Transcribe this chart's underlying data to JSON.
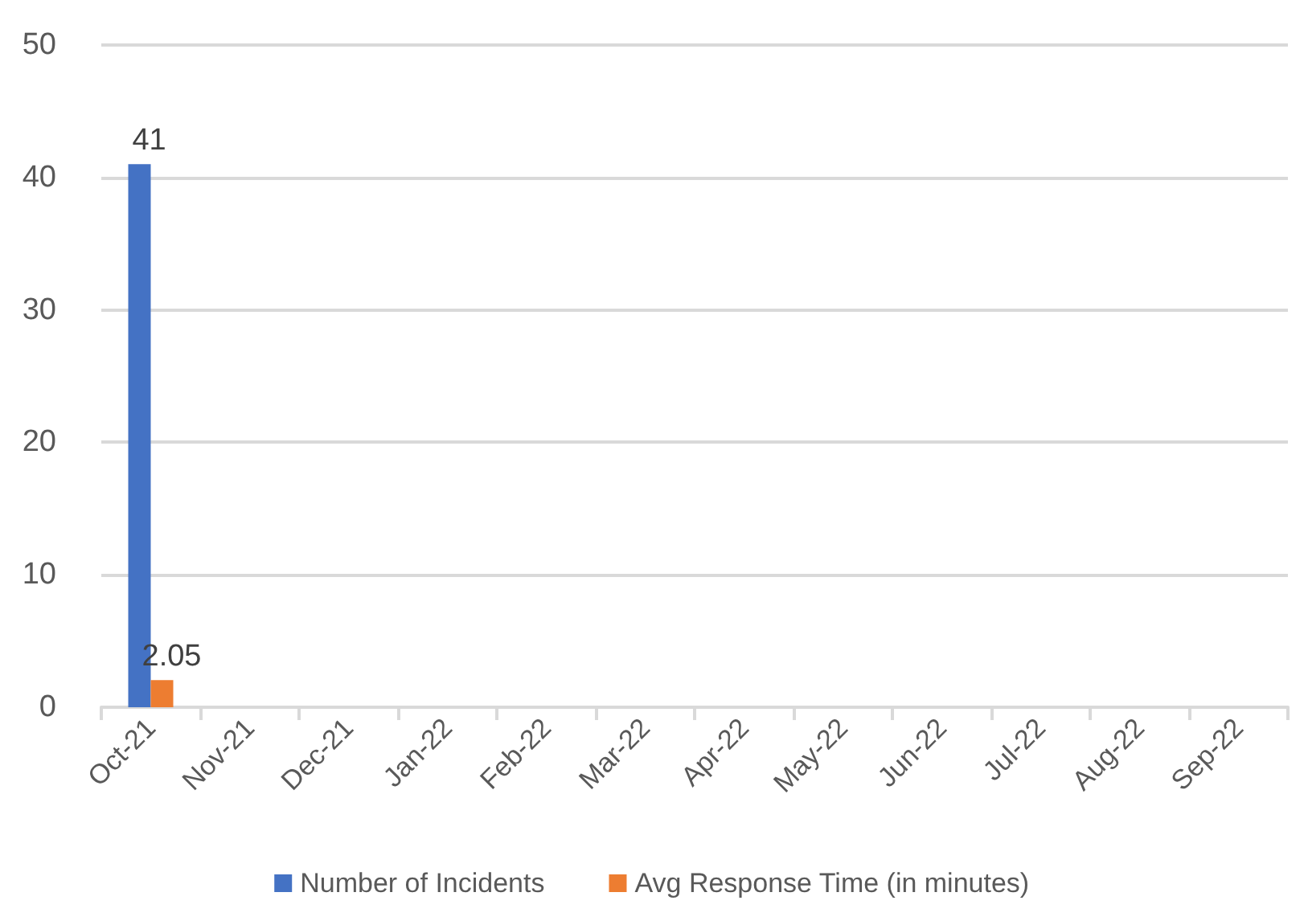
{
  "chart_data": {
    "type": "bar",
    "categories": [
      "Oct-21",
      "Nov-21",
      "Dec-21",
      "Jan-22",
      "Feb-22",
      "Mar-22",
      "Apr-22",
      "May-22",
      "Jun-22",
      "Jul-22",
      "Aug-22",
      "Sep-22"
    ],
    "series": [
      {
        "name": "Number of Incidents",
        "color": "#4472c4",
        "values": [
          41,
          null,
          null,
          null,
          null,
          null,
          null,
          null,
          null,
          null,
          null,
          null
        ]
      },
      {
        "name": "Avg Response Time (in minutes)",
        "color": "#ed7d31",
        "values": [
          2.05,
          null,
          null,
          null,
          null,
          null,
          null,
          null,
          null,
          null,
          null,
          null
        ]
      }
    ],
    "ylim": [
      0,
      50
    ],
    "yticks": [
      0,
      10,
      20,
      30,
      40,
      50
    ],
    "grid": "y",
    "legend": "bottom",
    "data_labels": true
  }
}
